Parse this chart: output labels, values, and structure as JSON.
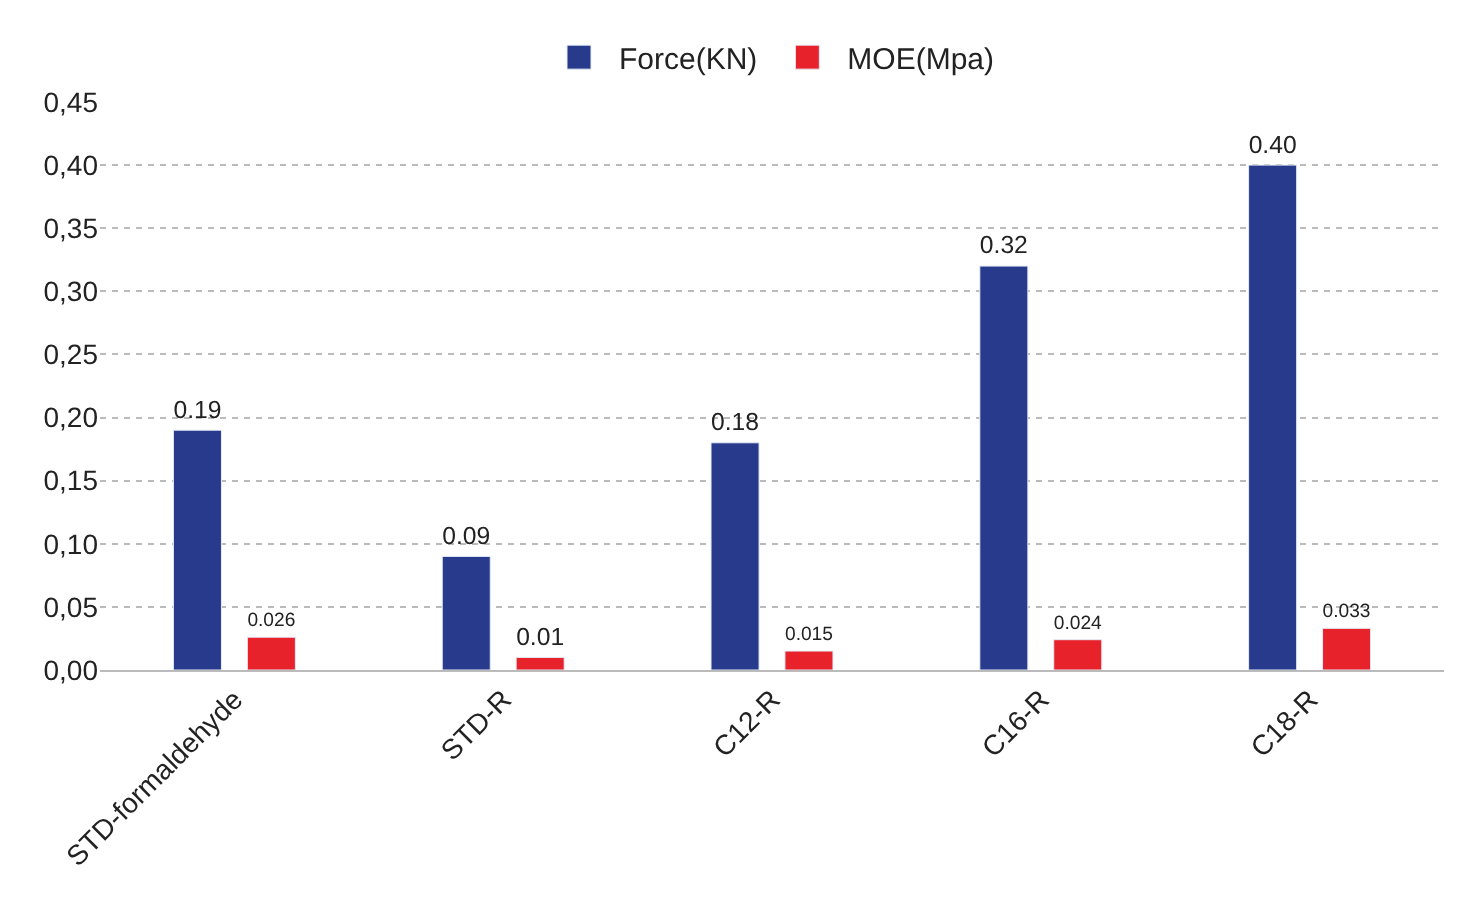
{
  "chart_data": {
    "type": "bar",
    "categories": [
      "STD-formaldehyde",
      "STD-R",
      "C12-R",
      "C16-R",
      "C18-R"
    ],
    "series": [
      {
        "name": "Force(KN)",
        "color": "#283a8c",
        "values": [
          0.19,
          0.09,
          0.18,
          0.32,
          0.4
        ],
        "value_labels": [
          "0.19",
          "0.09",
          "0.18",
          "0.32",
          "0.40"
        ]
      },
      {
        "name": "MOE(Mpa)",
        "color": "#e8222a",
        "values": [
          0.026,
          0.01,
          0.015,
          0.024,
          0.033
        ],
        "value_labels": [
          "0.026",
          "0.01",
          "0.015",
          "0.024",
          "0.033"
        ]
      }
    ],
    "ylim": [
      0,
      0.45
    ],
    "yticks": [
      {
        "value": 0,
        "label": "0,00"
      },
      {
        "value": 0.05,
        "label": "0,05"
      },
      {
        "value": 0.1,
        "label": "0,10"
      },
      {
        "value": 0.15,
        "label": "0,15"
      },
      {
        "value": 0.2,
        "label": "0,20"
      },
      {
        "value": 0.25,
        "label": "0,25"
      },
      {
        "value": 0.3,
        "label": "0,30"
      },
      {
        "value": 0.35,
        "label": "0,35"
      },
      {
        "value": 0.4,
        "label": "0,40"
      },
      {
        "value": 0.45,
        "label": "0,45"
      }
    ],
    "grid": "y",
    "legend": "top"
  }
}
